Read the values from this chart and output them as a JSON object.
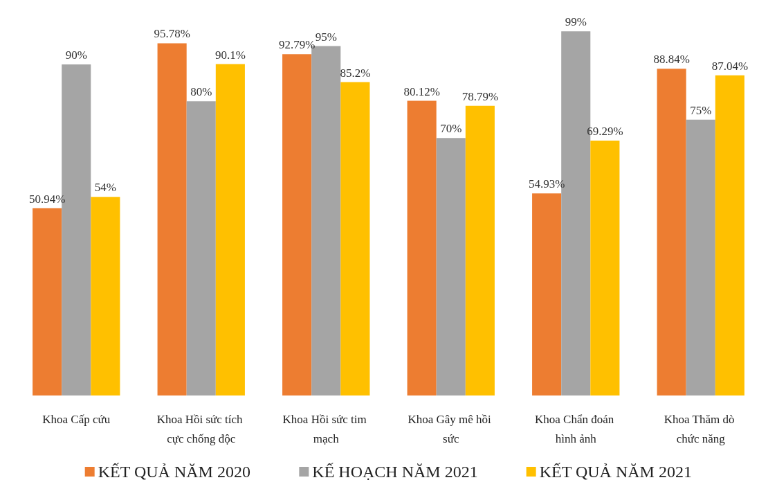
{
  "chart_data": {
    "type": "bar",
    "categories": [
      "Khoa Cấp cứu",
      "Khoa Hồi sức tích cực chống độc",
      "Khoa Hồi sức tim mạch",
      "Khoa Gây mê hồi sức",
      "Khoa Chẩn đoán hình ảnh",
      "Khoa Thăm dò chức năng"
    ],
    "series": [
      {
        "name": "KẾT QUẢ NĂM 2020",
        "color": "#ed7d31",
        "values": [
          50.94,
          95.78,
          92.79,
          80.12,
          54.93,
          88.84
        ],
        "value_labels": [
          "50.94%",
          "95.78%",
          "92.79%",
          "80.12%",
          "54.93%",
          "88.84%"
        ]
      },
      {
        "name": "KẾ HOẠCH NĂM 2021",
        "color": "#a5a5a5",
        "values": [
          90,
          80,
          95,
          70,
          99,
          75
        ],
        "value_labels": [
          "90%",
          "80%",
          "95%",
          "70%",
          "99%",
          "75%"
        ]
      },
      {
        "name": "KẾT QUẢ NĂM 2021",
        "color": "#ffc000",
        "values": [
          54,
          90.1,
          85.2,
          78.79,
          69.29,
          87.04
        ],
        "value_labels": [
          "54%",
          "90.1%",
          "85.2%",
          "78.79%",
          "69.29%",
          "87.04%"
        ]
      }
    ],
    "legend": "bottom"
  }
}
